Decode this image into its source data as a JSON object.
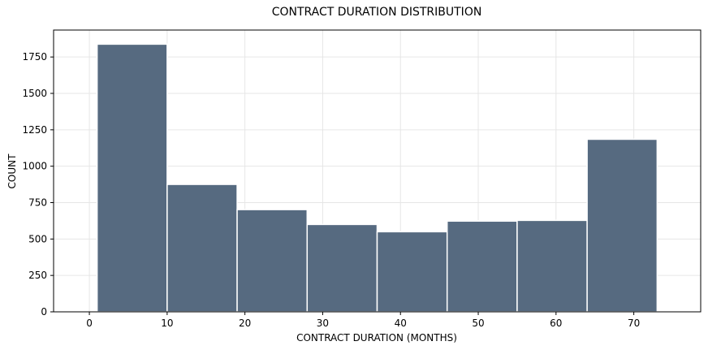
{
  "chart_data": {
    "type": "bar",
    "title": "CONTRACT DURATION DISTRIBUTION",
    "xlabel": "CONTRACT DURATION (MONTHS)",
    "ylabel": "COUNT",
    "bins": [
      {
        "x0": 1,
        "x1": 10,
        "value": 1838
      },
      {
        "x0": 10,
        "x1": 19,
        "value": 875
      },
      {
        "x0": 19,
        "x1": 28,
        "value": 702
      },
      {
        "x0": 28,
        "x1": 37,
        "value": 600
      },
      {
        "x0": 37,
        "x1": 46,
        "value": 550
      },
      {
        "x0": 46,
        "x1": 55,
        "value": 623
      },
      {
        "x0": 55,
        "x1": 64,
        "value": 628
      },
      {
        "x0": 64,
        "x1": 73,
        "value": 1185
      }
    ],
    "xlim": [
      -4.6,
      78.6
    ],
    "ylim": [
      0,
      1935
    ],
    "xticks": [
      0,
      10,
      20,
      30,
      40,
      50,
      60,
      70
    ],
    "yticks": [
      0,
      250,
      500,
      750,
      1000,
      1250,
      1500,
      1750
    ],
    "grid": true,
    "bar_color": "#566a80",
    "bar_edge_color": "#ffffff"
  }
}
